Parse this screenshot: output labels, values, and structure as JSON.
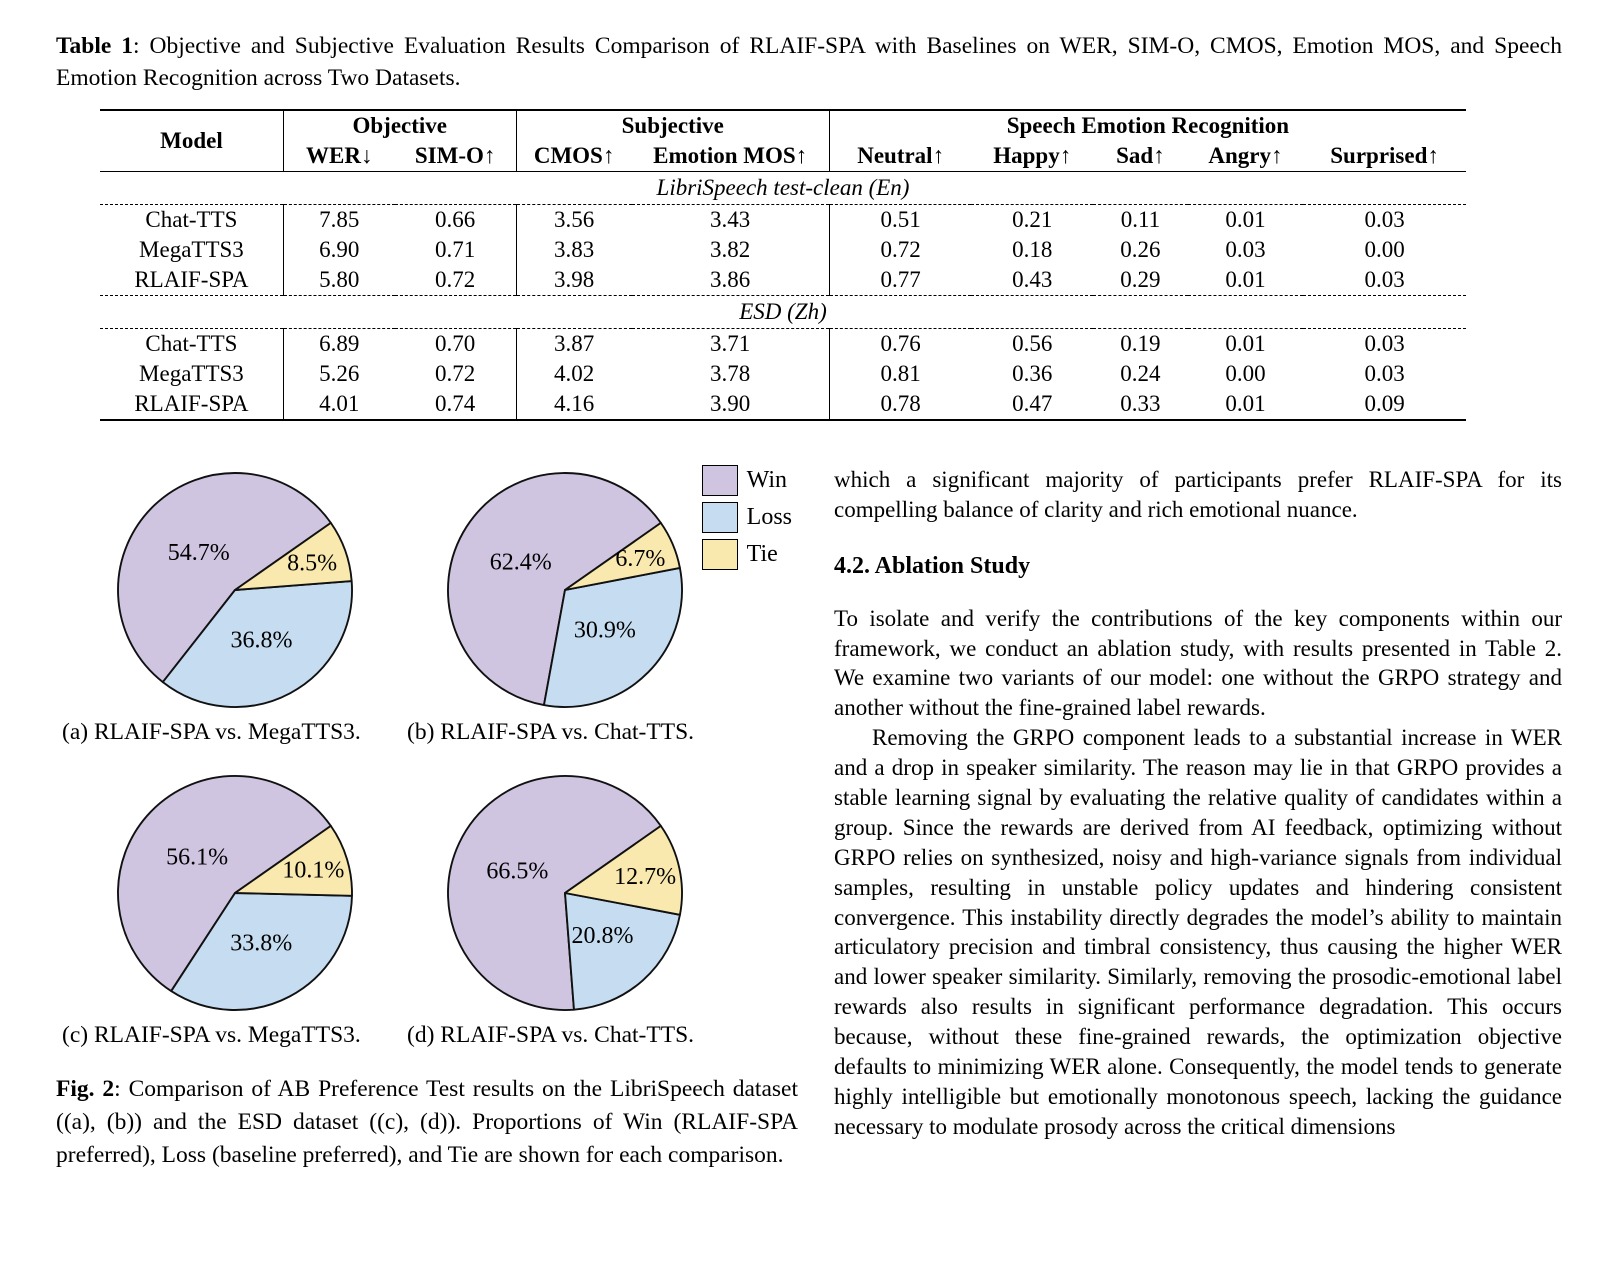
{
  "table1": {
    "caption_label": "Table 1",
    "caption_text": ": Objective and Subjective Evaluation Results Comparison of RLAIF-SPA with Baselines on WER, SIM-O, CMOS, Emotion MOS, and Speech Emotion Recognition across Two Datasets.",
    "model_header": "Model",
    "col_groups": [
      {
        "label": "Objective",
        "span": 2
      },
      {
        "label": "Subjective",
        "span": 2
      },
      {
        "label": "Speech Emotion Recognition",
        "span": 5
      }
    ],
    "sub_headers": [
      "WER↓",
      "SIM-O↑",
      "CMOS↑",
      "Emotion MOS↑",
      "Neutral↑",
      "Happy↑",
      "Sad↑",
      "Angry↑",
      "Surprised↑"
    ],
    "sections": [
      {
        "title": "LibriSpeech test-clean (En)",
        "rows": [
          {
            "model": "Chat-TTS",
            "bold": false,
            "cells": [
              {
                "v": "7.85",
                "b": false
              },
              {
                "v": "0.66",
                "b": false
              },
              {
                "v": "3.56",
                "b": false
              },
              {
                "v": "3.43",
                "b": false
              },
              {
                "v": "0.51",
                "b": false
              },
              {
                "v": "0.21",
                "b": false
              },
              {
                "v": "0.11",
                "b": false
              },
              {
                "v": "0.01",
                "b": false
              },
              {
                "v": "0.03",
                "b": true
              }
            ]
          },
          {
            "model": "MegaTTS3",
            "bold": false,
            "cells": [
              {
                "v": "6.90",
                "b": false
              },
              {
                "v": "0.71",
                "b": false
              },
              {
                "v": "3.83",
                "b": false
              },
              {
                "v": "3.82",
                "b": false
              },
              {
                "v": "0.72",
                "b": false
              },
              {
                "v": "0.18",
                "b": false
              },
              {
                "v": "0.26",
                "b": false
              },
              {
                "v": "0.03",
                "b": true
              },
              {
                "v": "0.00",
                "b": false
              }
            ]
          },
          {
            "model": "RLAIF-SPA",
            "bold": true,
            "cells": [
              {
                "v": "5.80",
                "b": true
              },
              {
                "v": "0.72",
                "b": true
              },
              {
                "v": "3.98",
                "b": true
              },
              {
                "v": "3.86",
                "b": true
              },
              {
                "v": "0.77",
                "b": true
              },
              {
                "v": "0.43",
                "b": true
              },
              {
                "v": "0.29",
                "b": true
              },
              {
                "v": "0.01",
                "b": false
              },
              {
                "v": "0.03",
                "b": true
              }
            ]
          }
        ]
      },
      {
        "title": "ESD (Zh)",
        "rows": [
          {
            "model": "Chat-TTS",
            "bold": false,
            "cells": [
              {
                "v": "6.89",
                "b": false
              },
              {
                "v": "0.70",
                "b": false
              },
              {
                "v": "3.87",
                "b": false
              },
              {
                "v": "3.71",
                "b": false
              },
              {
                "v": "0.76",
                "b": false
              },
              {
                "v": "0.56",
                "b": true
              },
              {
                "v": "0.19",
                "b": false
              },
              {
                "v": "0.01",
                "b": false
              },
              {
                "v": "0.03",
                "b": false
              }
            ]
          },
          {
            "model": "MegaTTS3",
            "bold": false,
            "cells": [
              {
                "v": "5.26",
                "b": false
              },
              {
                "v": "0.72",
                "b": false
              },
              {
                "v": "4.02",
                "b": false
              },
              {
                "v": "3.78",
                "b": false
              },
              {
                "v": "0.81",
                "b": true
              },
              {
                "v": "0.36",
                "b": false
              },
              {
                "v": "0.24",
                "b": false
              },
              {
                "v": "0.00",
                "b": false
              },
              {
                "v": "0.03",
                "b": false
              }
            ]
          },
          {
            "model": "RLAIF-SPA",
            "bold": true,
            "cells": [
              {
                "v": "4.01",
                "b": true
              },
              {
                "v": "0.74",
                "b": true
              },
              {
                "v": "4.16",
                "b": true
              },
              {
                "v": "3.90",
                "b": true
              },
              {
                "v": "0.78",
                "b": false
              },
              {
                "v": "0.47",
                "b": false
              },
              {
                "v": "0.33",
                "b": true
              },
              {
                "v": "0.01",
                "b": false
              },
              {
                "v": "0.09",
                "b": true
              }
            ]
          }
        ]
      }
    ]
  },
  "chart_data": [
    {
      "type": "pie",
      "id": "a",
      "caption": "(a) RLAIF-SPA vs. MegaTTS3.",
      "labels": [
        "Win",
        "Loss",
        "Tie"
      ],
      "values": [
        54.7,
        36.8,
        8.5
      ],
      "value_labels": [
        "54.7%",
        "36.8%",
        "8.5%"
      ],
      "start_angle": 35,
      "direction": "counterclockwise"
    },
    {
      "type": "pie",
      "id": "b",
      "caption": "(b) RLAIF-SPA vs. Chat-TTS.",
      "labels": [
        "Win",
        "Loss",
        "Tie"
      ],
      "values": [
        62.4,
        30.9,
        6.7
      ],
      "value_labels": [
        "62.4%",
        "30.9%",
        "6.7%"
      ],
      "start_angle": 35,
      "direction": "counterclockwise"
    },
    {
      "type": "pie",
      "id": "c",
      "caption": "(c) RLAIF-SPA vs. MegaTTS3.",
      "labels": [
        "Win",
        "Loss",
        "Tie"
      ],
      "values": [
        56.1,
        33.8,
        10.1
      ],
      "value_labels": [
        "56.1%",
        "33.8%",
        "10.1%"
      ],
      "start_angle": 35,
      "direction": "counterclockwise"
    },
    {
      "type": "pie",
      "id": "d",
      "caption": "(d) RLAIF-SPA vs. Chat-TTS.",
      "labels": [
        "Win",
        "Loss",
        "Tie"
      ],
      "values": [
        66.5,
        20.8,
        12.7
      ],
      "value_labels": [
        "66.5%",
        "20.8%",
        "12.7%"
      ],
      "start_angle": 35,
      "direction": "counterclockwise"
    }
  ],
  "legend": {
    "entries": [
      {
        "label": "Win",
        "color": "#cfc5e1"
      },
      {
        "label": "Loss",
        "color": "#c5dcf1"
      },
      {
        "label": "Tie",
        "color": "#f9e9ae"
      }
    ]
  },
  "figure2": {
    "caption_label": "Fig. 2",
    "caption_text": ": Comparison of AB Preference Test results on the LibriSpeech dataset ((a), (b)) and the ESD dataset ((c), (d)).  Proportions of Win (RLAIF-SPA preferred), Loss (baseline preferred), and Tie are shown for each comparison."
  },
  "right_column": {
    "intro": "which a significant majority of participants prefer RLAIF-SPA for its compelling balance of clarity and rich emotional nuance.",
    "section_heading": "4.2.  Ablation Study",
    "para1": "To isolate and verify the contributions of the key components within our framework, we conduct an ablation study, with results presented in Table 2. We examine two variants of our model: one without the GRPO strategy and another without the fine-grained label rewards.",
    "para2": "Removing the GRPO component leads to a substantial increase in WER and a drop in speaker similarity.  The reason may lie in that GRPO provides a stable learning signal by evaluating the relative quality of candidates within a group.  Since the rewards are derived from AI feedback, optimizing without GRPO relies on synthesized, noisy and high-variance signals from individual samples, resulting in unstable policy updates and hindering consistent convergence.  This instability directly degrades the model’s ability to maintain articulatory precision and timbral consistency, thus causing the higher WER and lower speaker similarity.  Similarly, removing the prosodic-emotional label rewards also results in significant performance degradation.  This occurs because, without these fine-grained rewards, the optimization objective defaults to minimizing WER alone.  Consequently, the model tends to generate highly intelligible but emotionally monotonous speech, lacking the guidance necessary to modulate prosody across the critical dimensions"
  }
}
